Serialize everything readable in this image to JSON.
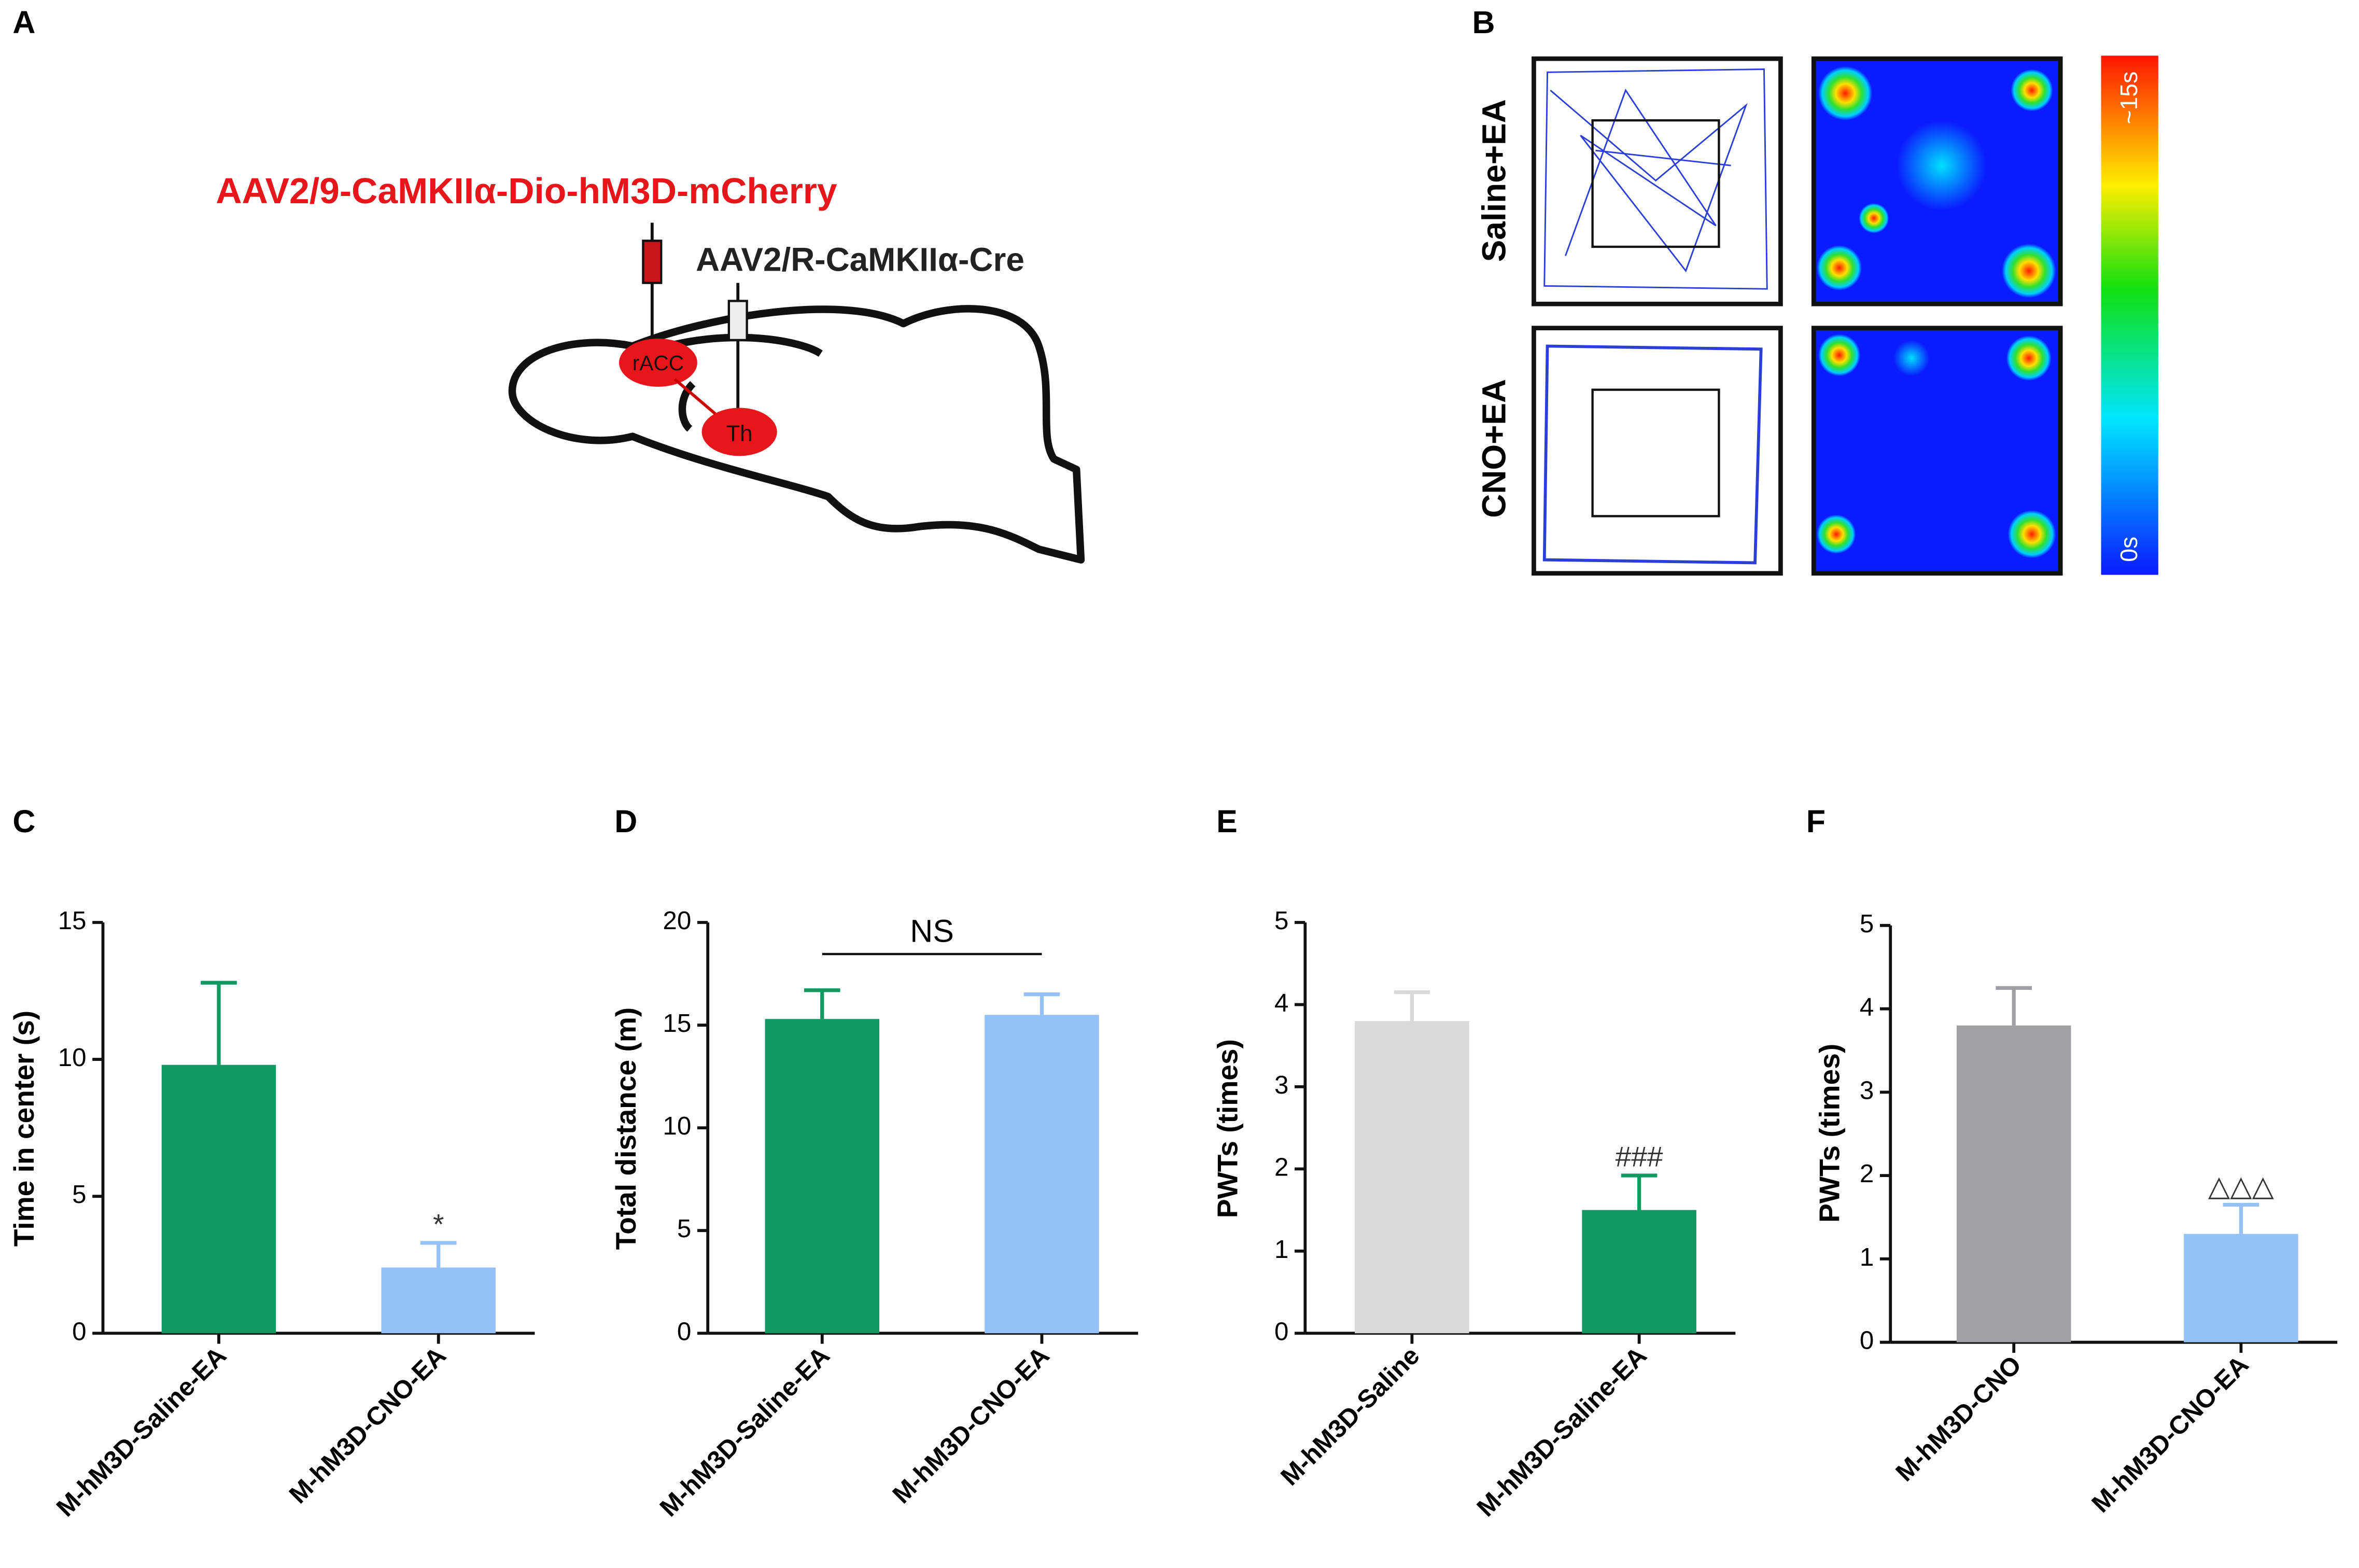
{
  "panel_a": {
    "label": "A",
    "virus_1": "AAV2/9-CaMKIIα-Dio-hM3D-mCherry",
    "virus_2": "AAV2/R-CaMKIIα-Cre",
    "region_1": "rACC",
    "region_2": "Th"
  },
  "panel_b": {
    "label": "B",
    "row_1": "Saline+EA",
    "row_2": "CNO+EA",
    "colorbar_max": "~15s",
    "colorbar_min": "0s"
  },
  "chart_data": [
    {
      "type": "bar",
      "panel_label": "C",
      "y_label": "Time in center (s)",
      "categories": [
        "M-hM3D-Saline-EA",
        "M-hM3D-CNO-EA"
      ],
      "values": [
        9.8,
        2.4
      ],
      "errors": [
        3.0,
        0.9
      ],
      "colors": [
        "#119962",
        "#94c1f7"
      ],
      "ylim": [
        0,
        15
      ],
      "yticks": [
        0,
        5,
        10,
        15
      ],
      "bar_annotations": [
        null,
        "*"
      ]
    },
    {
      "type": "bar",
      "panel_label": "D",
      "y_label": "Total distance (m)",
      "categories": [
        "M-hM3D-Saline-EA",
        "M-hM3D-CNO-EA"
      ],
      "values": [
        15.3,
        15.5
      ],
      "errors": [
        1.4,
        1.0
      ],
      "colors": [
        "#119962",
        "#94c1f7"
      ],
      "ylim": [
        0,
        20
      ],
      "yticks": [
        0,
        5,
        10,
        15,
        20
      ],
      "bracket_annotation": "NS"
    },
    {
      "type": "bar",
      "panel_label": "E",
      "y_label": "PWTs (times)",
      "categories": [
        "M-hM3D-Saline",
        "M-hM3D-Saline-EA"
      ],
      "values": [
        3.8,
        1.5
      ],
      "errors": [
        0.35,
        0.42
      ],
      "colors": [
        "#d9d9d9",
        "#119962"
      ],
      "ylim": [
        0,
        5
      ],
      "yticks": [
        0,
        1,
        2,
        3,
        4,
        5
      ],
      "bar_annotations": [
        null,
        "###"
      ]
    },
    {
      "type": "bar",
      "panel_label": "F",
      "y_label": "PWTs (times)",
      "categories": [
        "M-hM3D-CNO",
        "M-hM3D-CNO-EA"
      ],
      "values": [
        3.8,
        1.3
      ],
      "errors": [
        0.45,
        0.35
      ],
      "colors": [
        "#a0a0a4",
        "#94c1f7"
      ],
      "ylim": [
        0,
        5
      ],
      "yticks": [
        0,
        1,
        2,
        3,
        4,
        5
      ],
      "bar_annotations": [
        null,
        "△△△"
      ]
    }
  ]
}
